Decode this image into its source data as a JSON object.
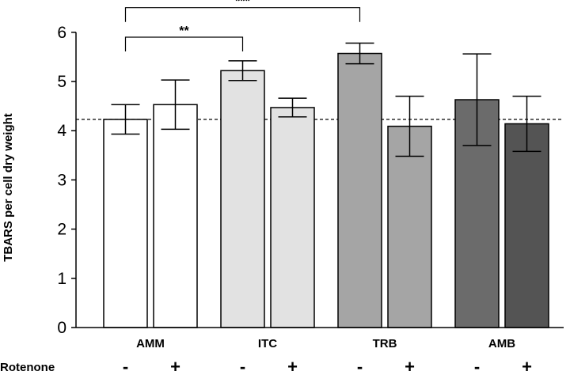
{
  "chart_data": {
    "type": "bar",
    "title": "",
    "xlabel": "",
    "ylabel": "TBARS per cell dry weight",
    "ylim": [
      0,
      6
    ],
    "yticks": [
      0,
      1,
      2,
      3,
      4,
      5,
      6
    ],
    "categories": [
      "AMM",
      "ITC",
      "TRB",
      "AMB"
    ],
    "row_label": "Rotenone",
    "series": [
      {
        "name": "Rotenone -",
        "sign": "-",
        "values": [
          4.23,
          5.22,
          5.57,
          4.63
        ],
        "errors": [
          0.3,
          0.2,
          0.21,
          0.93
        ],
        "colors": [
          "#ffffff",
          "#e2e2e2",
          "#a5a5a5",
          "#6b6b6b"
        ]
      },
      {
        "name": "Rotenone +",
        "sign": "+",
        "values": [
          4.53,
          4.47,
          4.09,
          4.14
        ],
        "errors": [
          0.5,
          0.19,
          0.61,
          0.56
        ],
        "colors": [
          "#ffffff",
          "#e2e2e2",
          "#a5a5a5",
          "#545454"
        ]
      }
    ],
    "reference_line": {
      "value": 4.23,
      "style": "dashed"
    },
    "significance": [
      {
        "label": "**",
        "from": "AMM -",
        "to": "ITC -",
        "y": 5.9
      },
      {
        "label": "***",
        "from": "AMM -",
        "to": "TRB -",
        "y": 6.5
      }
    ]
  }
}
